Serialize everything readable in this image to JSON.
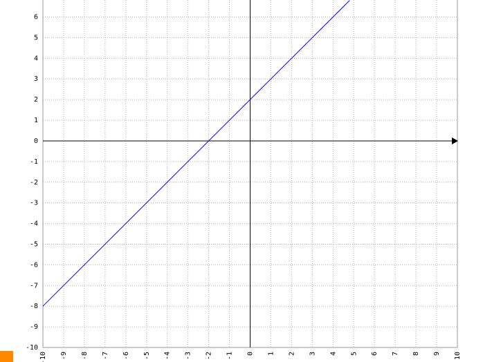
{
  "chart_data": {
    "type": "line",
    "x": [
      -10,
      4.8
    ],
    "values": [
      -8,
      6.8
    ],
    "color": "#0000ff",
    "xlim": [
      -10,
      10
    ],
    "ylim": [
      -10,
      6.82
    ],
    "xticks": [
      -10,
      -9,
      -8,
      -7,
      -6,
      -5,
      -4,
      -3,
      -2,
      -1,
      0,
      1,
      2,
      3,
      4,
      5,
      6,
      7,
      8,
      9,
      10
    ],
    "yticks": [
      -10,
      -9,
      -8,
      -7,
      -6,
      -5,
      -4,
      -3,
      -2,
      -1,
      0,
      1,
      2,
      3,
      4,
      5,
      6
    ],
    "grid": true
  }
}
